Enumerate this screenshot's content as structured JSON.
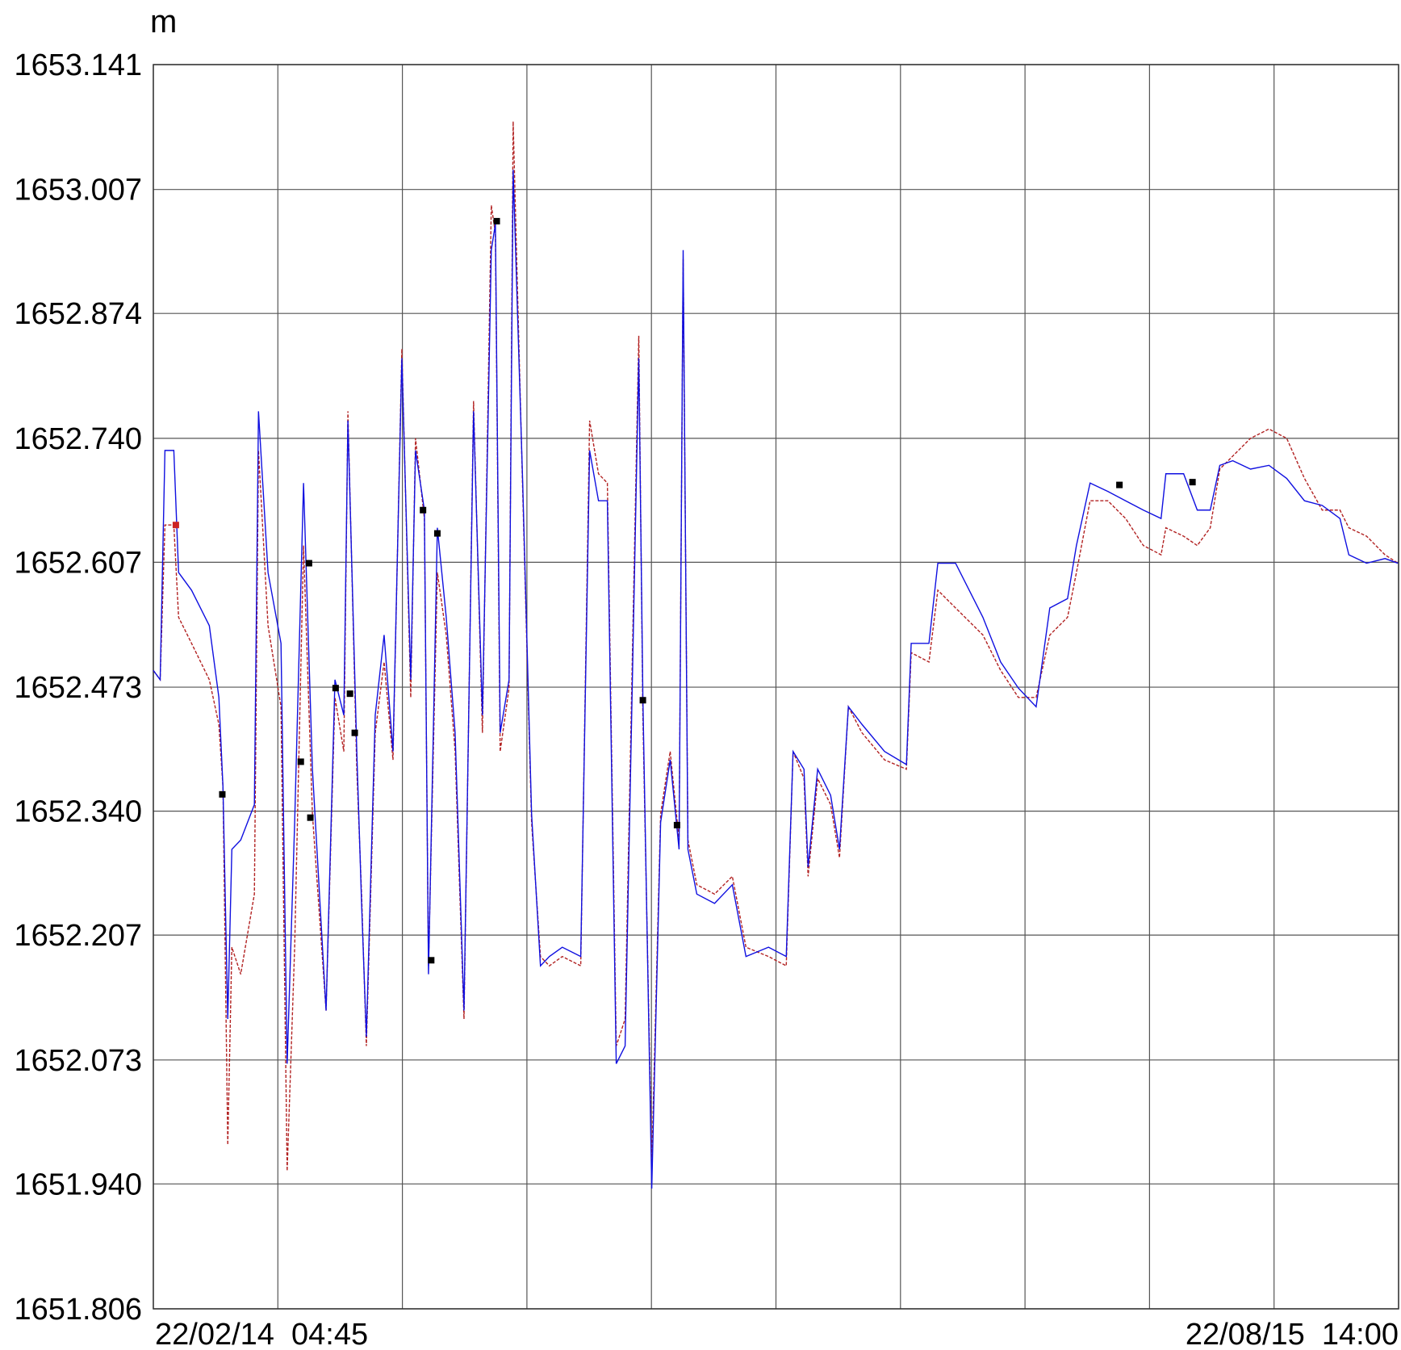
{
  "chart_data": {
    "type": "line",
    "y_label": "m",
    "ylim": [
      1651.806,
      1653.141
    ],
    "yticks": [
      1651.806,
      {
        "value": 1651.94,
        "label": "1651.940"
      },
      1652.073,
      1652.207,
      {
        "value": 1652.34,
        "label": "1652.340"
      },
      1652.473,
      1652.607,
      {
        "value": 1652.74,
        "label": "1652.740"
      },
      1652.874,
      1653.007,
      1653.141
    ],
    "xlim": [
      0,
      182.385
    ],
    "xticks": [
      {
        "value": 0,
        "label": "22/02/14  04:45"
      },
      {
        "value": 182.385,
        "label": "22/08/15  14:00"
      }
    ],
    "grid": true,
    "x_divisions": 10,
    "x": [
      0,
      1.0,
      1.7,
      3.0,
      3.7,
      5.6,
      8.2,
      9.6,
      10.2,
      10.9,
      11.5,
      12.8,
      14.8,
      15.4,
      16.8,
      18.7,
      19.6,
      20.7,
      22.0,
      23.3,
      25.3,
      26.6,
      27.9,
      28.5,
      29.8,
      30.5,
      31.2,
      32.5,
      33.8,
      35.1,
      36.4,
      37.7,
      38.4,
      39.7,
      40.3,
      41.6,
      42.9,
      44.2,
      45.5,
      46.9,
      48.2,
      49.5,
      50.1,
      50.8,
      52.1,
      52.7,
      54.1,
      55.4,
      56.7,
      58.0,
      59.9,
      62.6,
      63.9,
      65.2,
      66.5,
      67.8,
      69.1,
      71.1,
      71.7,
      73.0,
      74.3,
      75.7,
      77.0,
      77.6,
      78.3,
      79.6,
      82.2,
      84.8,
      86.8,
      90.1,
      92.7,
      93.7,
      95.3,
      95.9,
      97.3,
      99.2,
      100.5,
      101.8,
      103.8,
      107.1,
      110.3,
      111.0,
      113.6,
      114.9,
      117.5,
      121.5,
      124.1,
      126.7,
      129.3,
      131.3,
      133.9,
      135.2,
      137.2,
      139.8,
      142.4,
      145.0,
      147.6,
      148.3,
      150.9,
      152.9,
      154.8,
      156.2,
      158.1,
      160.7,
      163.4,
      166.0,
      168.6,
      171.2,
      173.8,
      175.1,
      177.7,
      180.4,
      182.3
    ],
    "series": [
      {
        "color": "#b22222",
        "dashed": true,
        "values": [
          1652.491,
          1652.481,
          1652.647,
          1652.647,
          1652.548,
          1652.52,
          1652.481,
          1652.433,
          1652.366,
          1651.982,
          1652.194,
          1652.165,
          1652.251,
          1652.727,
          1652.539,
          1652.452,
          1651.954,
          1652.194,
          1652.625,
          1652.337,
          1652.126,
          1652.462,
          1652.404,
          1652.769,
          1652.385,
          1652.251,
          1652.088,
          1652.424,
          1652.5,
          1652.395,
          1652.836,
          1652.462,
          1652.74,
          1652.654,
          1652.174,
          1652.596,
          1652.529,
          1652.404,
          1652.117,
          1652.78,
          1652.424,
          1652.99,
          1652.96,
          1652.404,
          1652.472,
          1653.08,
          1652.683,
          1652.328,
          1652.184,
          1652.174,
          1652.184,
          1652.174,
          1652.759,
          1652.702,
          1652.692,
          1652.088,
          1652.117,
          1652.85,
          1652.443,
          1651.96,
          1652.337,
          1652.404,
          1652.309,
          1652.932,
          1652.309,
          1652.261,
          1652.251,
          1652.27,
          1652.194,
          1652.184,
          1652.174,
          1652.404,
          1652.375,
          1652.27,
          1652.375,
          1652.347,
          1652.29,
          1652.452,
          1652.424,
          1652.395,
          1652.385,
          1652.51,
          1652.5,
          1652.577,
          1652.558,
          1652.529,
          1652.491,
          1652.462,
          1652.462,
          1652.529,
          1652.548,
          1652.596,
          1652.673,
          1652.673,
          1652.654,
          1652.625,
          1652.615,
          1652.644,
          1652.635,
          1652.625,
          1652.644,
          1652.707,
          1652.721,
          1652.74,
          1652.75,
          1652.74,
          1652.697,
          1652.663,
          1652.663,
          1652.644,
          1652.635,
          1652.615,
          1652.606
        ]
      },
      {
        "color": "#1010e0",
        "dashed": false,
        "values": [
          1652.491,
          1652.481,
          1652.727,
          1652.727,
          1652.596,
          1652.577,
          1652.539,
          1652.462,
          1652.366,
          1652.117,
          1652.299,
          1652.309,
          1652.347,
          1652.769,
          1652.596,
          1652.52,
          1652.069,
          1652.328,
          1652.692,
          1652.385,
          1652.126,
          1652.481,
          1652.443,
          1652.759,
          1652.404,
          1652.241,
          1652.098,
          1652.443,
          1652.529,
          1652.404,
          1652.826,
          1652.481,
          1652.727,
          1652.663,
          1652.165,
          1652.644,
          1652.548,
          1652.424,
          1652.126,
          1652.769,
          1652.443,
          1652.942,
          1652.97,
          1652.424,
          1652.481,
          1653.028,
          1652.692,
          1652.337,
          1652.174,
          1652.184,
          1652.194,
          1652.184,
          1652.727,
          1652.673,
          1652.673,
          1652.069,
          1652.088,
          1652.826,
          1652.462,
          1651.935,
          1652.328,
          1652.395,
          1652.299,
          1652.942,
          1652.299,
          1652.251,
          1652.241,
          1652.261,
          1652.184,
          1652.194,
          1652.184,
          1652.404,
          1652.385,
          1652.28,
          1652.385,
          1652.357,
          1652.299,
          1652.452,
          1652.433,
          1652.404,
          1652.39,
          1652.52,
          1652.52,
          1652.606,
          1652.606,
          1652.548,
          1652.5,
          1652.472,
          1652.452,
          1652.558,
          1652.568,
          1652.625,
          1652.692,
          1652.683,
          1652.673,
          1652.663,
          1652.654,
          1652.702,
          1652.702,
          1652.663,
          1652.663,
          1652.711,
          1652.716,
          1652.707,
          1652.711,
          1652.697,
          1652.673,
          1652.668,
          1652.654,
          1652.615,
          1652.606,
          1652.611,
          1652.606
        ]
      }
    ],
    "markers": [
      {
        "color": "#000000",
        "x": [
          10.1,
          21.6,
          22.8,
          23.0,
          26.7,
          28.8,
          29.5,
          39.5,
          40.7,
          41.6,
          50.3,
          71.7,
          76.7,
          141.5,
          152.2
        ],
        "values": [
          1652.358,
          1652.393,
          1652.606,
          1652.333,
          1652.472,
          1652.466,
          1652.424,
          1652.663,
          1652.18,
          1652.638,
          1652.973,
          1652.459,
          1652.325,
          1652.69,
          1652.693
        ]
      },
      {
        "color": "#cc2222",
        "x": [
          3.3
        ],
        "values": [
          1652.647
        ]
      }
    ]
  }
}
